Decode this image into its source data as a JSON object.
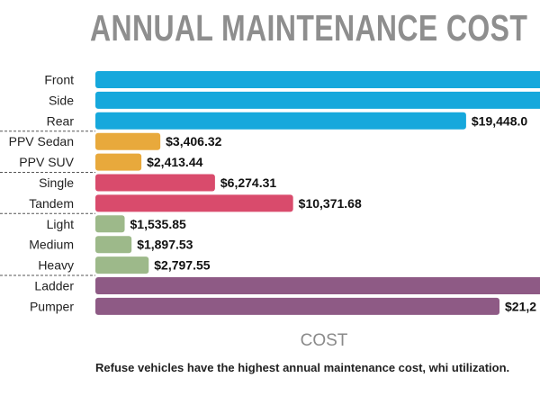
{
  "title": "ANNUAL MAINTENANCE COST",
  "axis_label": "COST",
  "caption": "Refuse vehicles have the highest annual maintenance cost, whi utilization.",
  "chart_data": {
    "type": "bar",
    "orientation": "horizontal",
    "title": "ANNUAL MAINTENANCE COST",
    "xlabel": "COST",
    "ylabel": "",
    "xlim": [
      0,
      23000
    ],
    "grid": false,
    "legend": "none",
    "groups": [
      {
        "color": "#16a8dc",
        "items": [
          {
            "category": "Front",
            "value": 24000,
            "label": ""
          },
          {
            "category": "Side",
            "value": 24000,
            "label": ""
          },
          {
            "category": "Rear",
            "value": 19448.0,
            "label": "$19,448.0"
          }
        ]
      },
      {
        "color": "#e8a93c",
        "items": [
          {
            "category": "PPV Sedan",
            "value": 3406.32,
            "label": "$3,406.32"
          },
          {
            "category": "PPV SUV",
            "value": 2413.44,
            "label": "$2,413.44"
          }
        ]
      },
      {
        "color": "#d94b6c",
        "items": [
          {
            "category": "Single",
            "value": 6274.31,
            "label": "$6,274.31"
          },
          {
            "category": "Tandem",
            "value": 10371.68,
            "label": "$10,371.68"
          }
        ]
      },
      {
        "color": "#9db98a",
        "items": [
          {
            "category": "Light",
            "value": 1535.85,
            "label": "$1,535.85"
          },
          {
            "category": "Medium",
            "value": 1897.53,
            "label": "$1,897.53"
          },
          {
            "category": "Heavy",
            "value": 2797.55,
            "label": "$2,797.55"
          }
        ]
      },
      {
        "color": "#8e5a85",
        "items": [
          {
            "category": "Ladder",
            "value": 24000,
            "label": ""
          },
          {
            "category": "Pumper",
            "value": 21200,
            "label": "$21,2"
          }
        ]
      }
    ]
  }
}
